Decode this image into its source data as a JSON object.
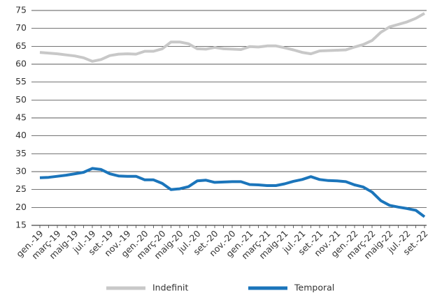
{
  "chart_data": {
    "type": "line",
    "categories": [
      "gen.-19",
      null,
      "març-19",
      null,
      "maig-19",
      null,
      "jul.-19",
      null,
      "set.-19",
      null,
      "nov.-19",
      null,
      "gen.-20",
      null,
      "març-20",
      null,
      "maig-20",
      null,
      "jul.-20",
      null,
      "set.-20",
      null,
      "nov.-20",
      null,
      "gen.-21",
      null,
      "març-21",
      null,
      "maig-21",
      null,
      "jul.-21",
      null,
      "set.-21",
      null,
      "nov.-21",
      null,
      "gen.-22",
      null,
      "març-22",
      null,
      "maig-22",
      null,
      "jul.-22",
      null,
      "set.-22"
    ],
    "series": [
      {
        "name": "Indefinit",
        "color": "#c8c8c8",
        "values": [
          63.3,
          63.1,
          62.9,
          62.6,
          62.3,
          61.8,
          60.8,
          61.3,
          62.4,
          62.8,
          62.9,
          62.8,
          63.6,
          63.6,
          64.3,
          66.2,
          66.2,
          65.7,
          64.3,
          64.2,
          64.7,
          64.3,
          64.2,
          64.1,
          64.9,
          64.8,
          65.1,
          65.1,
          64.6,
          64.0,
          63.3,
          62.9,
          63.7,
          63.8,
          63.9,
          64.0,
          64.8,
          65.5,
          66.6,
          68.9,
          70.4,
          71.1,
          71.8,
          72.8,
          74.2
        ]
      },
      {
        "name": "Temporal",
        "color": "#1b75bb",
        "values": [
          28.3,
          28.4,
          28.7,
          29.0,
          29.4,
          29.8,
          30.9,
          30.6,
          29.4,
          28.8,
          28.7,
          28.7,
          27.7,
          27.7,
          26.7,
          25.0,
          25.2,
          25.8,
          27.4,
          27.6,
          27.0,
          27.1,
          27.2,
          27.2,
          26.4,
          26.3,
          26.1,
          26.1,
          26.6,
          27.3,
          27.8,
          28.6,
          27.8,
          27.5,
          27.4,
          27.2,
          26.3,
          25.7,
          24.3,
          21.9,
          20.6,
          20.1,
          19.7,
          19.2,
          17.4
        ]
      }
    ],
    "ylim": [
      15,
      75
    ],
    "yticks": [
      15,
      20,
      25,
      30,
      35,
      40,
      45,
      50,
      55,
      60,
      65,
      70,
      75
    ],
    "grid": true,
    "legend": "bottom"
  }
}
